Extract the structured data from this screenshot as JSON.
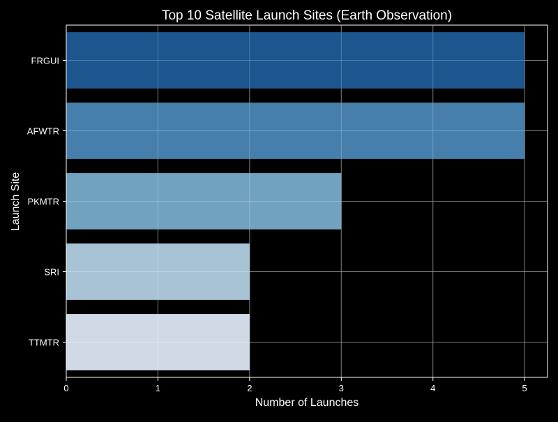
{
  "chart_data": {
    "type": "bar",
    "orientation": "horizontal",
    "title": "Top 10 Satellite Launch Sites (Earth Observation)",
    "xlabel": "Number of Launches",
    "ylabel": "Launch Site",
    "categories": [
      "FRGUI",
      "AFWTR",
      "PKMTR",
      "SRI",
      "TTMTR"
    ],
    "values": [
      5,
      5,
      3,
      2,
      2
    ],
    "bar_colors": [
      "#1f5a96",
      "#4a86b4",
      "#77abca",
      "#b0cde0",
      "#dbe6f3"
    ],
    "xlim": [
      0,
      5.25
    ],
    "xticks": [
      0,
      1,
      2,
      3,
      4,
      5
    ],
    "grid": true
  },
  "theme": {
    "background": "#000000",
    "text": "#ffffff",
    "grid": "#5a5a5a",
    "axis": "#ffffff"
  }
}
